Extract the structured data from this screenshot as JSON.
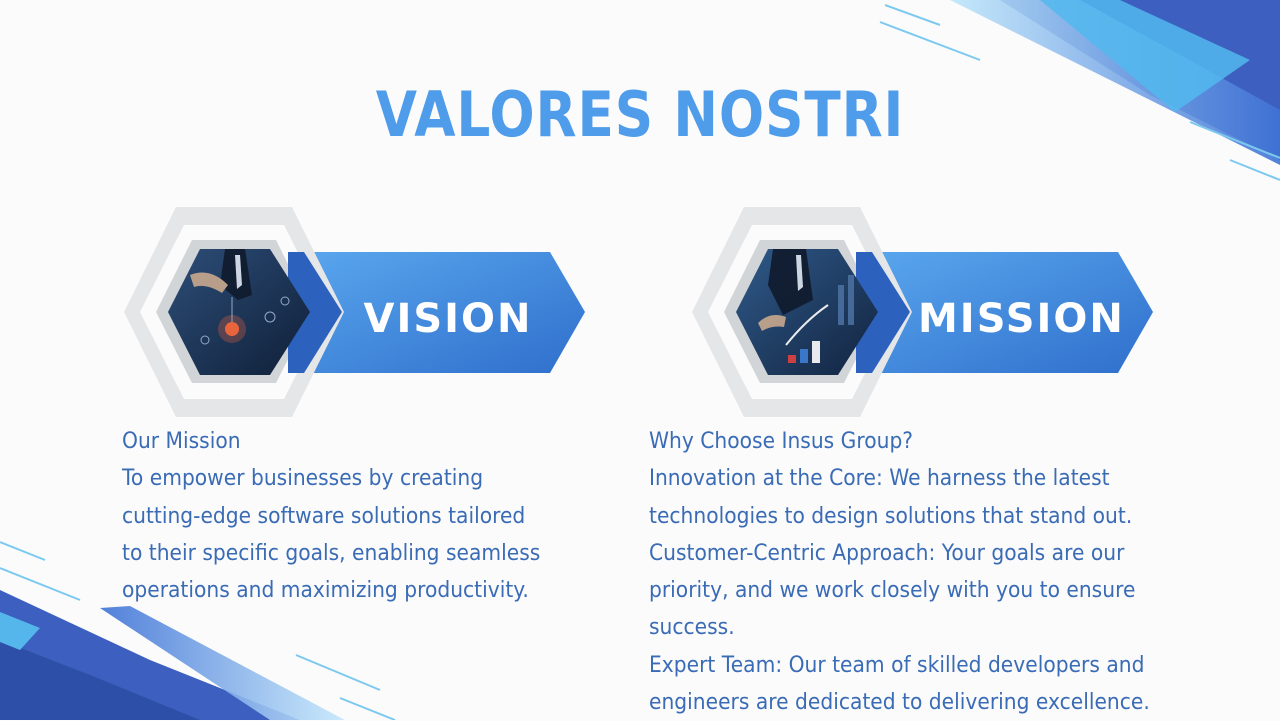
{
  "title": "VALORES NOSTRI",
  "colors": {
    "accent": "#4f9cea",
    "text": "#3a6bb5",
    "banner_light": "#5aa7ee",
    "banner_dark": "#2f6fcc",
    "frame": "#e6e8ea"
  },
  "cards": [
    {
      "label": "VISION",
      "photo": "businessman-lightbulb-photo",
      "text_lines": [
        "Our Mission",
        "To empower businesses by creating",
        "cutting-edge software solutions tailored",
        "to their specific goals, enabling seamless",
        "operations and maximizing productivity."
      ]
    },
    {
      "label": "MISSION",
      "photo": "businessman-growth-chart-photo",
      "text_lines": [
        "Why Choose Insus Group?",
        "Innovation at the Core: We harness the latest",
        "technologies to design solutions that stand out.",
        "Customer-Centric Approach: Your goals are our",
        "priority, and we work closely with you to ensure",
        "success.",
        "Expert Team: Our team of skilled developers and",
        "engineers are dedicated to delivering excellence."
      ]
    }
  ]
}
